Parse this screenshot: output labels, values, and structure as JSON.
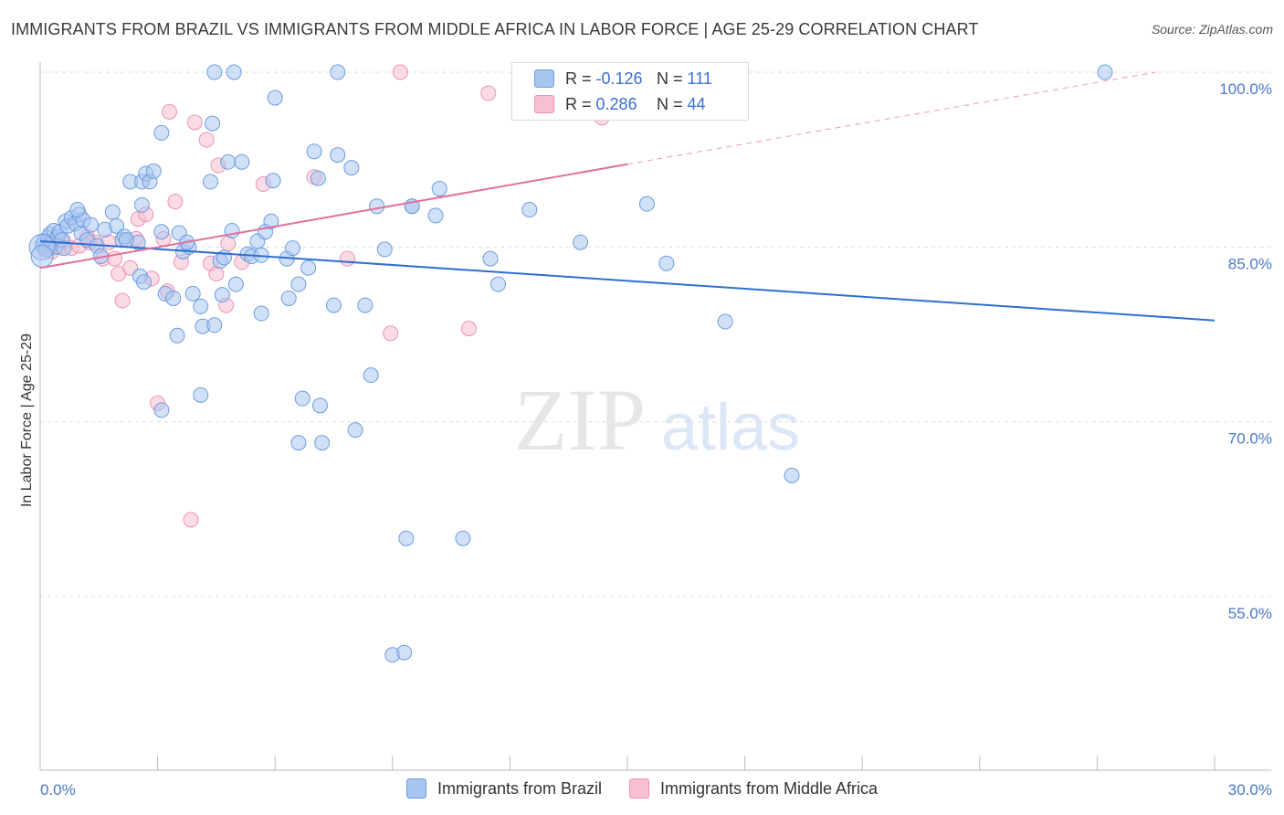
{
  "title": "IMMIGRANTS FROM BRAZIL VS IMMIGRANTS FROM MIDDLE AFRICA IN LABOR FORCE | AGE 25-29 CORRELATION CHART",
  "source": "Source: ZipAtlas.com",
  "watermark": {
    "zip": "ZIP",
    "atlas": "atlas"
  },
  "legend": {
    "r_label": "R =",
    "n_label": "N =",
    "series": [
      {
        "name": "Immigrants from Brazil",
        "r": "-0.126",
        "n": "111"
      },
      {
        "name": "Immigrants from Middle Africa",
        "r": "0.286",
        "n": "44"
      }
    ]
  },
  "colors": {
    "brazil_fill": "#a9c6f0",
    "brazil_stroke": "#6d9ce0",
    "brazil_line": "#2f6fcf",
    "africa_fill": "#f7bfd0",
    "africa_stroke": "#ee93b0",
    "africa_line": "#e0709a"
  },
  "chart_data": {
    "type": "scatter",
    "title": "IMMIGRANTS FROM BRAZIL VS IMMIGRANTS FROM MIDDLE AFRICA IN LABOR FORCE | AGE 25-29 CORRELATION CHART",
    "xlabel": "",
    "ylabel": "In Labor Force | Age 25-29",
    "xlim": [
      0,
      30
    ],
    "ylim": [
      40,
      102
    ],
    "x_ticks": [
      "0.0%",
      "30.0%"
    ],
    "y_ticks": [
      {
        "value": 100,
        "label": "100.0%"
      },
      {
        "value": 85,
        "label": "85.0%"
      },
      {
        "value": 70,
        "label": "70.0%"
      },
      {
        "value": 55,
        "label": "55.0%"
      }
    ],
    "grid": true,
    "legend_position": "top-center",
    "series": [
      {
        "name": "Immigrants from Brazil",
        "trend": {
          "x0": 0,
          "y0": 85.5,
          "x1": 30,
          "y1": 78.7
        },
        "points": [
          [
            0.05,
            85.2
          ],
          [
            0.1,
            85.5
          ],
          [
            0.15,
            84.8
          ],
          [
            0.2,
            85.8
          ],
          [
            0.25,
            86.1
          ],
          [
            0.3,
            85.3
          ],
          [
            0.35,
            86.4
          ],
          [
            0.4,
            85.0
          ],
          [
            0.45,
            85.9
          ],
          [
            0.5,
            86.3
          ],
          [
            0.55,
            85.6
          ],
          [
            0.6,
            84.9
          ],
          [
            0.65,
            87.2
          ],
          [
            0.7,
            86.8
          ],
          [
            0.8,
            87.5
          ],
          [
            0.9,
            87.0
          ],
          [
            1.0,
            87.8
          ],
          [
            1.05,
            86.2
          ],
          [
            1.1,
            87.3
          ],
          [
            1.2,
            85.6
          ],
          [
            1.3,
            86.9
          ],
          [
            1.45,
            85.1
          ],
          [
            1.55,
            84.2
          ],
          [
            1.65,
            86.5
          ],
          [
            1.85,
            88.0
          ],
          [
            1.95,
            86.8
          ],
          [
            2.1,
            85.6
          ],
          [
            2.15,
            85.9
          ],
          [
            2.3,
            90.6
          ],
          [
            2.6,
            90.6
          ],
          [
            2.7,
            91.3
          ],
          [
            2.8,
            90.6
          ],
          [
            2.9,
            91.5
          ],
          [
            2.6,
            88.6
          ],
          [
            2.5,
            85.4
          ],
          [
            2.55,
            82.5
          ],
          [
            2.65,
            82.0
          ],
          [
            3.1,
            94.8
          ],
          [
            3.1,
            86.3
          ],
          [
            3.2,
            81.0
          ],
          [
            3.4,
            80.6
          ],
          [
            3.5,
            77.4
          ],
          [
            3.55,
            86.2
          ],
          [
            3.65,
            84.6
          ],
          [
            3.8,
            85.0
          ],
          [
            3.9,
            81.0
          ],
          [
            4.1,
            79.9
          ],
          [
            4.15,
            78.2
          ],
          [
            4.35,
            90.6
          ],
          [
            4.4,
            95.6
          ],
          [
            4.45,
            78.3
          ],
          [
            4.6,
            83.8
          ],
          [
            4.7,
            84.1
          ],
          [
            4.65,
            80.9
          ],
          [
            4.8,
            92.3
          ],
          [
            4.9,
            86.4
          ],
          [
            5.0,
            81.8
          ],
          [
            5.15,
            92.3
          ],
          [
            5.3,
            84.4
          ],
          [
            5.4,
            84.2
          ],
          [
            5.55,
            85.5
          ],
          [
            5.65,
            79.3
          ],
          [
            5.75,
            86.3
          ],
          [
            5.95,
            90.7
          ],
          [
            5.9,
            87.2
          ],
          [
            6.0,
            97.8
          ],
          [
            6.3,
            84.0
          ],
          [
            6.35,
            80.6
          ],
          [
            6.45,
            84.9
          ],
          [
            6.6,
            81.8
          ],
          [
            6.7,
            72.0
          ],
          [
            6.85,
            83.2
          ],
          [
            7.0,
            93.2
          ],
          [
            7.1,
            90.9
          ],
          [
            7.15,
            71.4
          ],
          [
            7.2,
            68.2
          ],
          [
            7.5,
            80.0
          ],
          [
            7.6,
            92.9
          ],
          [
            7.95,
            91.8
          ],
          [
            8.05,
            69.3
          ],
          [
            8.3,
            80.0
          ],
          [
            8.45,
            74.0
          ],
          [
            8.6,
            88.5
          ],
          [
            8.8,
            84.8
          ],
          [
            9.0,
            50.0
          ],
          [
            9.3,
            50.2
          ],
          [
            9.5,
            88.5
          ],
          [
            10.1,
            87.7
          ],
          [
            10.2,
            90.0
          ],
          [
            10.8,
            60.0
          ],
          [
            11.5,
            84.0
          ],
          [
            11.7,
            81.8
          ],
          [
            12.5,
            88.2
          ],
          [
            13.8,
            85.4
          ],
          [
            15.5,
            88.7
          ],
          [
            16.0,
            83.6
          ],
          [
            17.5,
            78.6
          ],
          [
            19.2,
            65.4
          ],
          [
            27.2,
            100.0
          ],
          [
            4.45,
            100.0
          ],
          [
            4.95,
            100.0
          ],
          [
            7.6,
            100.0
          ],
          [
            5.65,
            84.3
          ],
          [
            3.75,
            85.4
          ],
          [
            9.5,
            88.5
          ],
          [
            6.6,
            68.2
          ],
          [
            9.35,
            60.0
          ],
          [
            4.1,
            72.3
          ],
          [
            3.1,
            71.0
          ],
          [
            0.95,
            88.2
          ],
          [
            2.2,
            85.6
          ]
        ]
      },
      {
        "name": "Immigrants from Middle Africa",
        "trend": {
          "x0": 0,
          "y0": 83.2,
          "x1": 15.0,
          "y1": 92.1,
          "dash_to_x": 28.5,
          "dash_to_y": 100.0
        },
        "points": [
          [
            0.1,
            84.8
          ],
          [
            0.2,
            85.3
          ],
          [
            0.3,
            84.6
          ],
          [
            0.4,
            85.7
          ],
          [
            0.5,
            85.0
          ],
          [
            0.6,
            85.5
          ],
          [
            0.8,
            84.9
          ],
          [
            1.0,
            85.1
          ],
          [
            1.2,
            85.9
          ],
          [
            1.4,
            85.4
          ],
          [
            1.6,
            84.0
          ],
          [
            1.75,
            85.4
          ],
          [
            1.9,
            84.0
          ],
          [
            2.0,
            82.7
          ],
          [
            2.1,
            80.4
          ],
          [
            2.3,
            83.2
          ],
          [
            2.5,
            87.4
          ],
          [
            2.7,
            87.8
          ],
          [
            2.85,
            82.3
          ],
          [
            3.0,
            71.6
          ],
          [
            3.15,
            85.7
          ],
          [
            3.3,
            96.6
          ],
          [
            3.45,
            88.9
          ],
          [
            3.6,
            83.7
          ],
          [
            3.85,
            61.6
          ],
          [
            3.95,
            95.7
          ],
          [
            4.25,
            94.2
          ],
          [
            4.35,
            83.6
          ],
          [
            4.5,
            82.7
          ],
          [
            4.55,
            92.0
          ],
          [
            4.8,
            85.3
          ],
          [
            5.15,
            83.7
          ],
          [
            5.7,
            90.4
          ],
          [
            7.0,
            91.0
          ],
          [
            7.85,
            84.0
          ],
          [
            8.95,
            77.6
          ],
          [
            9.2,
            100.0
          ],
          [
            10.95,
            78.0
          ],
          [
            11.45,
            98.2
          ],
          [
            14.35,
            96.1
          ],
          [
            1.25,
            85.4
          ],
          [
            3.25,
            81.2
          ],
          [
            4.75,
            80.0
          ],
          [
            2.45,
            85.7
          ]
        ]
      }
    ]
  }
}
